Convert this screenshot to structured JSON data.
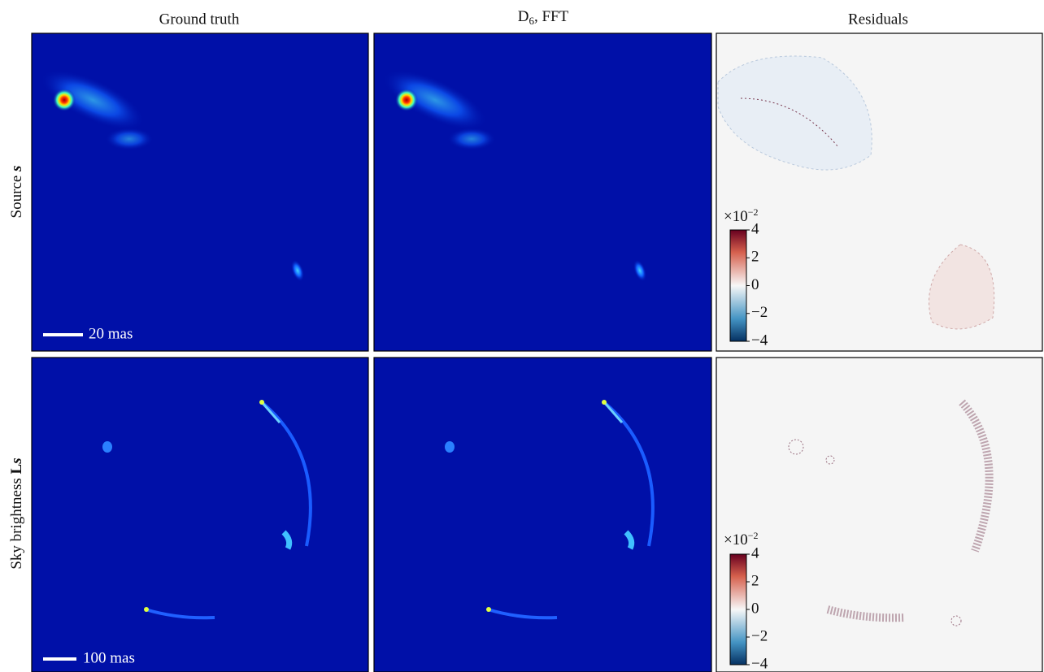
{
  "columns": [
    {
      "title": "Ground truth"
    },
    {
      "title": "D",
      "title_sub": "6",
      "title_rest": ", FFT"
    },
    {
      "title": "Residuals"
    }
  ],
  "rows": [
    {
      "label": "Source ",
      "label_symbol": "s",
      "scale_bar": "20 mas"
    },
    {
      "label": "Sky brightness ",
      "label_symbol_upright": "L",
      "label_symbol": "s",
      "scale_bar": "100 mas"
    }
  ],
  "colorbar": {
    "offset": "×10",
    "offset_exp": "−2",
    "lim": [
      -4,
      4
    ],
    "ticks": [
      4,
      2,
      {
        "value": 0,
        "label": "0"
      },
      {
        "value": -2,
        "label": "−2"
      },
      {
        "value": -4,
        "label": "−4"
      }
    ]
  }
}
